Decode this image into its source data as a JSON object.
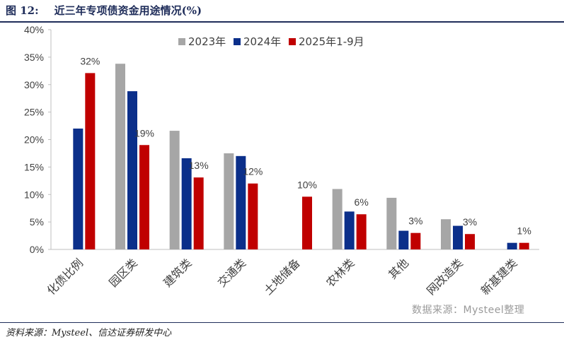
{
  "figure": {
    "number": "图 12:",
    "title": "近三年专项债资金用途情况(%)",
    "source": "资料来源：Mysteel、信达证券研发中心",
    "watermark": "数据来源：Mysteel整理"
  },
  "chart_data": {
    "type": "bar",
    "categories": [
      "化债比例",
      "园区类",
      "建筑类",
      "交通类",
      "土地储备",
      "农林类",
      "其他",
      "网改造类",
      "新基建类"
    ],
    "series": [
      {
        "name": "2023年",
        "color": "#a6a6a6",
        "values": [
          null,
          33.8,
          21.6,
          17.5,
          null,
          11.0,
          9.4,
          5.5,
          null
        ]
      },
      {
        "name": "2024年",
        "color": "#0b2f8a",
        "values": [
          22.0,
          28.8,
          16.6,
          17.0,
          null,
          6.9,
          3.4,
          4.3,
          1.2
        ]
      },
      {
        "name": "2025年1-9月",
        "color": "#c00000",
        "values": [
          32.1,
          19.0,
          13.1,
          12.0,
          9.6,
          6.4,
          3.0,
          2.8,
          1.2
        ]
      }
    ],
    "data_labels": [
      "32%",
      "19%",
      "13%",
      "12%",
      "10%",
      "6%",
      "3%",
      "3%",
      "1%"
    ],
    "y_ticks": [
      "0%",
      "5%",
      "10%",
      "15%",
      "20%",
      "25%",
      "30%",
      "35%",
      "40%"
    ],
    "ylim": [
      0,
      40
    ],
    "grid": false,
    "legend_position": "top"
  }
}
